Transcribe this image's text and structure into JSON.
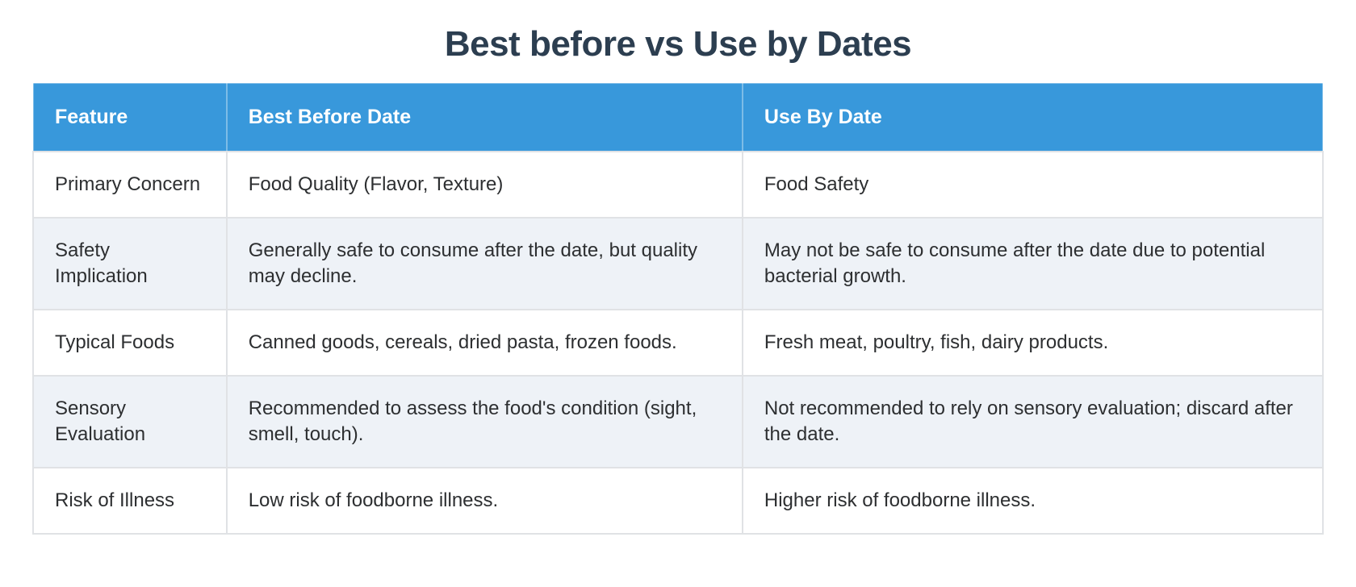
{
  "page": {
    "title": "Best before vs Use by Dates"
  },
  "colors": {
    "title_text": "#2c3e50",
    "header_bg": "#3898db",
    "header_text": "#ffffff",
    "row_bg": "#ffffff",
    "row_alt_bg": "#eef2f7",
    "border": "#e0e2e5",
    "body_text": "#2d2f31"
  },
  "chart_data": {
    "type": "table",
    "title": "Best before vs Use by Dates",
    "columns": [
      "Feature",
      "Best Before Date",
      "Use By Date"
    ],
    "rows": [
      [
        "Primary Concern",
        "Food Quality (Flavor, Texture)",
        "Food Safety"
      ],
      [
        "Safety Implication",
        "Generally safe to consume after the date, but quality may decline.",
        "May not be safe to consume after the date due to potential bacterial growth."
      ],
      [
        "Typical Foods",
        "Canned goods, cereals, dried pasta, frozen foods.",
        "Fresh meat, poultry, fish, dairy products."
      ],
      [
        "Sensory Evaluation",
        "Recommended to assess the food's condition (sight, smell, touch).",
        "Not recommended to rely on sensory evaluation; discard after the date."
      ],
      [
        "Risk of Illness",
        "Low risk of foodborne illness.",
        "Higher risk of foodborne illness."
      ]
    ]
  }
}
